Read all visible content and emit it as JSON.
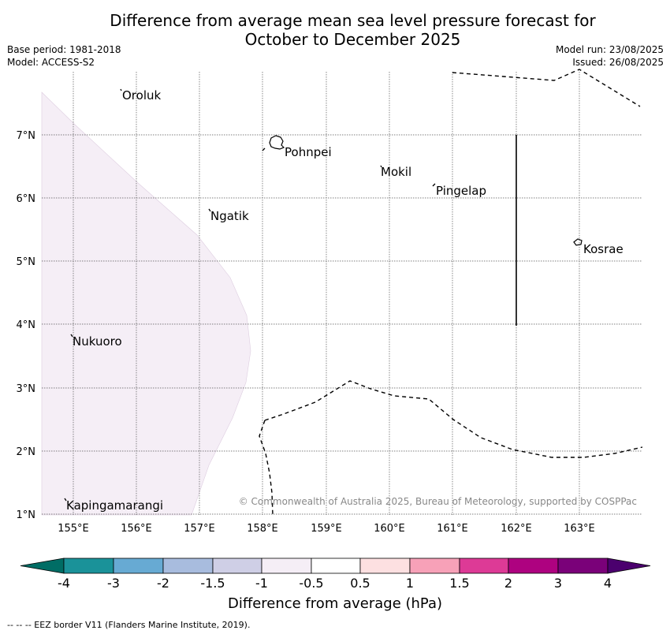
{
  "title": {
    "line1": "Difference from average mean sea level pressure forecast for",
    "line2": "October to December 2025"
  },
  "meta": {
    "base_period": "Base period: 1981-2018",
    "model": "Model: ACCESS-S2",
    "model_run": "Model run: 23/08/2025",
    "issued": "Issued: 26/08/2025"
  },
  "map": {
    "lon_labels": [
      "155°E",
      "156°E",
      "157°E",
      "158°E",
      "159°E",
      "160°E",
      "161°E",
      "162°E",
      "163°E"
    ],
    "lat_labels": [
      "7°N",
      "6°N",
      "5°N",
      "4°N",
      "3°N",
      "2°N",
      "1°N"
    ],
    "places": [
      {
        "name": "Oroluk"
      },
      {
        "name": "Pohnpei"
      },
      {
        "name": "Mokil"
      },
      {
        "name": "Pingelap"
      },
      {
        "name": "Ngatik"
      },
      {
        "name": "Kosrae"
      },
      {
        "name": "Nukuoro"
      },
      {
        "name": "Kapingamarangi"
      }
    ],
    "shaded_region_color": "#f5eef6",
    "copyright": "© Commonwealth of Australia 2025, Bureau of Meteorology, supported by COSPPac"
  },
  "colorbar": {
    "title": "Difference from average (hPa)",
    "labels": [
      "-4",
      "-3",
      "-2",
      "-1.5",
      "-1",
      "-0.5",
      "0.5",
      "1",
      "1.5",
      "2",
      "3",
      "4"
    ],
    "colors": [
      "#006d65",
      "#1a9299",
      "#67aad3",
      "#a8bcde",
      "#cfcfe6",
      "#f5eef6",
      "#ffffff",
      "#fde0e1",
      "#f7a1b8",
      "#dd3a96",
      "#ae0280",
      "#7a0179",
      "#4b006e"
    ]
  },
  "footer": "-- -- -- EEZ border V11 (Flanders Marine Institute, 2019)."
}
